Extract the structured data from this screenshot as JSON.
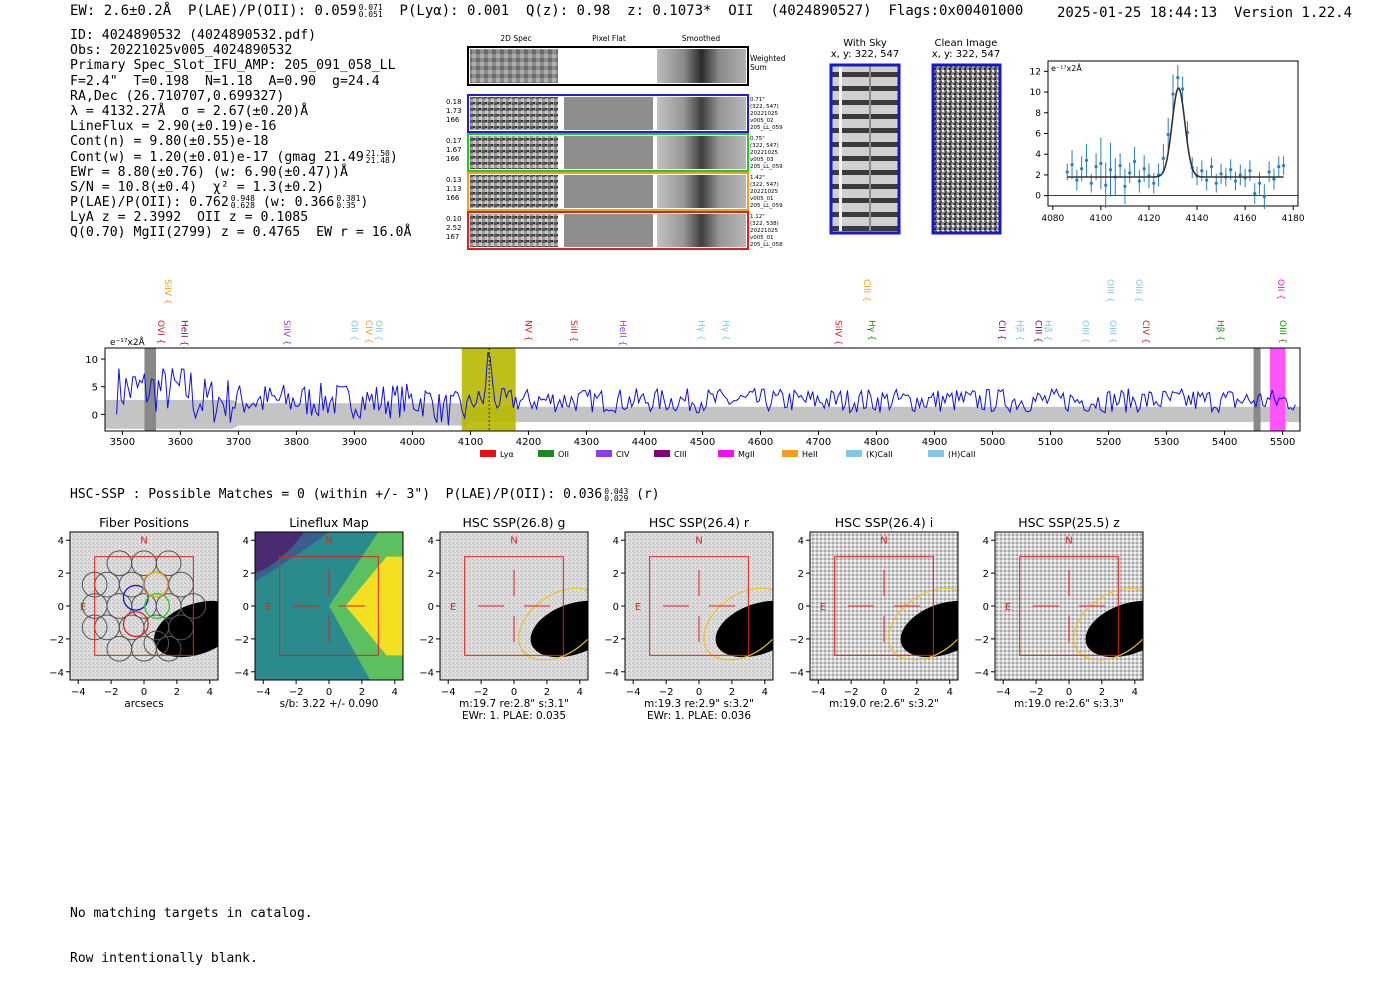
{
  "header": {
    "ew": "EW: 2.6±0.2Å",
    "plae": "P(LAE)/P(OII): 0.059",
    "plae_hi": "0.071",
    "plae_lo": "0.051",
    "plya": "P(Lyα): 0.001",
    "qz": "Q(z): 0.98",
    "z": "z: 0.1073*",
    "line": "OII",
    "detectid": "(4024890527)",
    "flags": "Flags:0x00401000",
    "datetime": "2025-01-25 18:44:13",
    "version": "Version 1.22.4"
  },
  "info": {
    "id": "ID: 4024890532 (4024890532.pdf)",
    "obs": "Obs: 20221025v005_4024890532",
    "primary": "Primary Spec_Slot_IFU_AMP: 205_091_058_LL",
    "fwhm": "F=2.4\"  T=0.198  N=1.18  A=0.90  g=24.4",
    "radec": "RA,Dec (26.710707,0.699327)",
    "lambda": "λ = 4132.27Å  σ = 2.67(±0.20)Å",
    "lineflux": "LineFlux = 2.90(±0.19)e-16",
    "contn": "Cont(n) = 9.80(±0.55)e-18",
    "contw": "Cont(w) = 1.20(±0.01)e-17 (gmag 21.49",
    "contw_hi": "21.50",
    "contw_lo": "21.48",
    "ewr": "EWr = 8.80(±0.76) (w: 6.90(±0.47))Å",
    "sn": "S/N = 10.8(±0.4)  χ² = 1.3(±0.2)",
    "plae": "P(LAE)/P(OII): 0.762",
    "plae_hi": "0.948",
    "plae_lo": "0.628",
    "plae_w": "(w: 0.366",
    "plae_w_hi": "0.381",
    "plae_w_lo": "0.35",
    "lya": "LyA z = 2.3992  OII z = 0.1085",
    "q": "Q(0.70) MgII(2799) z = 0.4765  EW r = 16.0Å"
  },
  "cutouts": {
    "col_2d": "2D Spec",
    "col_flat": "Pixel Flat",
    "col_smooth": "Smoothed",
    "weighted": "Weighted Sum",
    "rows": [
      {
        "color": "#1f1fd0",
        "v1": "0.18",
        "v2": "1.73",
        "v3": "166",
        "r1": "0.71\"",
        "r2": "(322, 547)",
        "r3": "20221025",
        "r4": "v005_02",
        "r5": "205_LL_059"
      },
      {
        "color": "#22cc22",
        "v1": "0.17",
        "v2": "1.67",
        "v3": "166",
        "r1": "0.75\"",
        "r2": "(322, 547)",
        "r3": "20221025",
        "r4": "v005_03",
        "r5": "205_LL_059"
      },
      {
        "color": "#f0a020",
        "v1": "0.13",
        "v2": "1.13",
        "v3": "166",
        "r1": "1.42\"",
        "r2": "(322, 547)",
        "r3": "20221025",
        "r4": "v005_01",
        "r5": "205_LL_059"
      },
      {
        "color": "#e02020",
        "v1": "0.10",
        "v2": "2.52",
        "v3": "167",
        "r1": "1.12\"",
        "r2": "(322, 538)",
        "r3": "20221025",
        "r4": "v005_01",
        "r5": "205_LL_058"
      }
    ]
  },
  "sky": {
    "with_sky_title": "With Sky",
    "with_sky_coords": "x, y: 322, 547",
    "clean_title": "Clean Image",
    "clean_coords": "x, y: 322, 547"
  },
  "chart_data": [
    {
      "type": "line",
      "title": "Emission line zoom",
      "ylabel": "e⁻¹⁷x2Å",
      "xlim": [
        4078,
        4182
      ],
      "ylim": [
        -1,
        13
      ],
      "xticks": [
        4080,
        4100,
        4120,
        4140,
        4160,
        4180
      ],
      "yticks": [
        0,
        2,
        4,
        6,
        8,
        10,
        12
      ],
      "model": {
        "continuum": 1.8,
        "center": 4132.3,
        "sigma": 2.67,
        "amplitude": 8.6
      },
      "x": [
        4086,
        4088,
        4090,
        4092,
        4094,
        4096,
        4098,
        4100,
        4102,
        4104,
        4106,
        4108,
        4110,
        4112,
        4114,
        4116,
        4118,
        4120,
        4122,
        4124,
        4126,
        4128,
        4130,
        4132,
        4134,
        4136,
        4138,
        4140,
        4142,
        4144,
        4146,
        4148,
        4150,
        4152,
        4154,
        4156,
        4158,
        4160,
        4162,
        4164,
        4166,
        4168,
        4170,
        4172,
        4174,
        4176
      ],
      "y": [
        2.3,
        3.0,
        1.5,
        2.6,
        3.4,
        1.2,
        2.8,
        3.1,
        1.0,
        2.5,
        1.8,
        2.9,
        0.9,
        2.2,
        3.3,
        1.4,
        2.6,
        1.9,
        1.2,
        2.0,
        3.6,
        5.9,
        9.8,
        11.4,
        10.3,
        6.1,
        2.7,
        1.9,
        2.4,
        1.5,
        2.8,
        1.2,
        2.1,
        1.8,
        2.5,
        1.4,
        2.0,
        1.7,
        2.4,
        0.2,
        1.2,
        -0.1,
        2.3,
        1.6,
        2.8,
        2.9
      ],
      "yerr": [
        0.8,
        1.4,
        1.0,
        1.2,
        1.6,
        0.9,
        1.3,
        2.5,
        2.2,
        2.6,
        1.8,
        1.2,
        1.7,
        1.0,
        1.4,
        1.1,
        1.3,
        1.2,
        1.0,
        1.1,
        1.4,
        1.6,
        1.9,
        1.2,
        1.2,
        1.1,
        1.0,
        0.9,
        1.0,
        1.0,
        0.9,
        0.9,
        1.0,
        0.9,
        1.0,
        0.9,
        1.0,
        0.9,
        1.0,
        1.0,
        1.1,
        1.2,
        1.0,
        1.0,
        1.0,
        0.9
      ]
    },
    {
      "type": "line",
      "title": "Full spectrum",
      "ylabel": "e⁻¹⁷x2Å",
      "xlim": [
        3470,
        5530
      ],
      "ylim": [
        -3,
        12
      ],
      "xticks": [
        3500,
        3600,
        3700,
        3800,
        3900,
        4000,
        4100,
        4200,
        4300,
        4400,
        4500,
        4600,
        4700,
        4800,
        4900,
        5000,
        5100,
        5200,
        5300,
        5400,
        5500
      ],
      "yticks": [
        0,
        5,
        10
      ],
      "peak_wavelength": 4132.27,
      "highlight": [
        4085,
        4178
      ],
      "masked_left": [
        3538,
        3558
      ],
      "masked_right": [
        5450,
        5462
      ],
      "magenta": [
        5478,
        5505
      ],
      "lines": [
        {
          "label": "OVI",
          "x": 3556,
          "color": "#d21f1f",
          "row": "mid"
        },
        {
          "label": "HeII",
          "x": 3597,
          "color": "#800080",
          "row": "mid"
        },
        {
          "label": "SiIV",
          "x": 3568,
          "color": "#f0a020",
          "row": "top"
        },
        {
          "label": "SiIV",
          "x": 3773,
          "color": "#9040e0",
          "row": "mid"
        },
        {
          "label": "OII",
          "x": 3890,
          "color": "#80c8e8",
          "row": "mid"
        },
        {
          "label": "CIV",
          "x": 3915,
          "color": "#f0a020",
          "row": "mid"
        },
        {
          "label": "OII",
          "x": 3932,
          "color": "#80c8e8",
          "row": "mid"
        },
        {
          "label": "NV",
          "x": 4190,
          "color": "#d21f1f",
          "row": "mid"
        },
        {
          "label": "SiII",
          "x": 4268,
          "color": "#d21f1f",
          "row": "mid"
        },
        {
          "label": "HeII",
          "x": 4353,
          "color": "#9040e0",
          "row": "mid"
        },
        {
          "label": "Hγ",
          "x": 4488,
          "color": "#80c8e8",
          "row": "mid"
        },
        {
          "label": "Hγ",
          "x": 4530,
          "color": "#80c8e8",
          "row": "mid"
        },
        {
          "label": "SiIV",
          "x": 4724,
          "color": "#d21f1f",
          "row": "mid"
        },
        {
          "label": "CIII",
          "x": 4773,
          "color": "#f0a020",
          "row": "top"
        },
        {
          "label": "Hγ",
          "x": 4782,
          "color": "#1a8a1a",
          "row": "mid"
        },
        {
          "label": "CII",
          "x": 5006,
          "color": "#800080",
          "row": "mid"
        },
        {
          "label": "Hβ",
          "x": 5037,
          "color": "#80c8e8",
          "row": "mid"
        },
        {
          "label": "CIII",
          "x": 5069,
          "color": "#800080",
          "row": "mid"
        },
        {
          "label": "Hβ",
          "x": 5085,
          "color": "#80c8e8",
          "row": "mid"
        },
        {
          "label": "OIII",
          "x": 5150,
          "color": "#80c8e8",
          "row": "mid"
        },
        {
          "label": "OIII",
          "x": 5193,
          "color": "#80c8e8",
          "row": "top"
        },
        {
          "label": "OIII",
          "x": 5197,
          "color": "#80c8e8",
          "row": "mid"
        },
        {
          "label": "OIII",
          "x": 5242,
          "color": "#80c8e8",
          "row": "top"
        },
        {
          "label": "CIV",
          "x": 5254,
          "color": "#d21f1f",
          "row": "mid"
        },
        {
          "label": "Hβ",
          "x": 5383,
          "color": "#1a8a1a",
          "row": "mid"
        },
        {
          "label": "OII",
          "x": 5487,
          "color": "#e020e0",
          "row": "top"
        },
        {
          "label": "OIII",
          "x": 5490,
          "color": "#1a8a1a",
          "row": "mid"
        }
      ],
      "legend": [
        {
          "label": "Lyα",
          "color": "#e81010"
        },
        {
          "label": "OII",
          "color": "#1a8a1a"
        },
        {
          "label": "CIV",
          "color": "#8a3fe8"
        },
        {
          "label": "CIII",
          "color": "#800080"
        },
        {
          "label": "MgII",
          "color": "#f010f0"
        },
        {
          "label": "HeII",
          "color": "#f0a020"
        },
        {
          "label": "(K)CaII",
          "color": "#80c8e8"
        },
        {
          "label": "(H)CaII",
          "color": "#80c8e8"
        }
      ]
    }
  ],
  "hsc": {
    "line": "HSC-SSP : Possible Matches = 0 (within +/- 3\")  P(LAE)/P(OII): 0.036",
    "hi": "0.043",
    "lo": "0.029",
    "band": "(r)"
  },
  "panels": [
    {
      "title": "Fiber Positions",
      "cap1": "arcsecs",
      "cap2": ""
    },
    {
      "title": "Lineflux Map",
      "cap1": "s/b: 3.22 +/- 0.090",
      "cap2": ""
    },
    {
      "title": "HSC SSP(26.8) g",
      "cap1": "m:19.7  re:2.8\"  s:3.1\"",
      "cap2": "EWr: 1. PLAE: 0.035"
    },
    {
      "title": "HSC SSP(26.4) r",
      "cap1": "m:19.3  re:2.9\"  s:3.2\"",
      "cap2": "EWr: 1. PLAE: 0.036"
    },
    {
      "title": "HSC SSP(26.4) i",
      "cap1": "m:19.0  re:2.6\"  s:3.2\"",
      "cap2": ""
    },
    {
      "title": "HSC SSP(25.5) z",
      "cap1": "m:19.0  re:2.6\"  s:3.3\"",
      "cap2": ""
    }
  ],
  "panel_axis": {
    "ticks": [
      "−4",
      "−2",
      "0",
      "2",
      "4"
    ],
    "north": "N",
    "east": "E"
  },
  "footer": {
    "line1": "No matching targets in catalog.",
    "line2": "Row intentionally blank."
  }
}
